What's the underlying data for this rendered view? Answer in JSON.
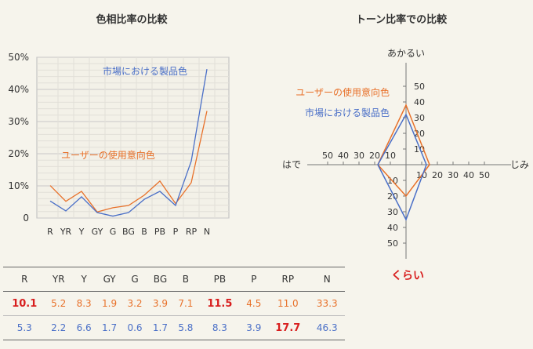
{
  "colors": {
    "intent": "#e8712a",
    "market": "#4a6fc7",
    "emphasis": "#d81e1e",
    "grid": "#cfcfcf"
  },
  "chart_data": [
    {
      "type": "line",
      "title": "色相比率の比較",
      "categories": [
        "R",
        "YR",
        "Y",
        "GY",
        "G",
        "BG",
        "B",
        "PB",
        "P",
        "RP",
        "N"
      ],
      "y_tick_labels": [
        "0",
        "10%",
        "20%",
        "30%",
        "40%",
        "50%"
      ],
      "ylim": [
        0,
        50
      ],
      "grid": true,
      "series": [
        {
          "name": "ユーザーの使用意向色",
          "color": "#e8712a",
          "values": [
            10.1,
            5.2,
            8.3,
            1.9,
            3.2,
            3.9,
            7.1,
            11.5,
            4.5,
            11.0,
            33.3
          ]
        },
        {
          "name": "市場における製品色",
          "color": "#4a6fc7",
          "values": [
            5.3,
            2.2,
            6.6,
            1.7,
            0.6,
            1.7,
            5.8,
            8.3,
            3.9,
            17.7,
            46.3
          ]
        }
      ]
    },
    {
      "type": "radar",
      "title": "トーン比率での比較",
      "axes": {
        "top": "あかるい",
        "bottom": "くらい",
        "left": "はで",
        "right": "じみ"
      },
      "tick_labels": [
        "10",
        "20",
        "30",
        "40",
        "50"
      ],
      "range": [
        0,
        55
      ],
      "series": [
        {
          "name": "ユーザーの使用意向色",
          "color": "#e8712a",
          "values": {
            "top": 38,
            "right": 15,
            "bottom": 20,
            "left": 18
          }
        },
        {
          "name": "市場における製品色",
          "color": "#4a6fc7",
          "values": {
            "top": 32,
            "right": 13,
            "bottom": 35,
            "left": 18
          }
        }
      ]
    }
  ],
  "table": {
    "headers": [
      "R",
      "YR",
      "Y",
      "GY",
      "G",
      "BG",
      "B",
      "PB",
      "P",
      "RP",
      "N"
    ],
    "rows": [
      {
        "series": "intent",
        "values": [
          "10.1",
          "5.2",
          "8.3",
          "1.9",
          "3.2",
          "3.9",
          "7.1",
          "11.5",
          "4.5",
          "11.0",
          "33.3"
        ],
        "highlight": [
          0,
          7
        ]
      },
      {
        "series": "market",
        "values": [
          "5.3",
          "2.2",
          "6.6",
          "1.7",
          "0.6",
          "1.7",
          "5.8",
          "8.3",
          "3.9",
          "17.7",
          "46.3"
        ],
        "highlight": [
          9
        ]
      }
    ]
  }
}
